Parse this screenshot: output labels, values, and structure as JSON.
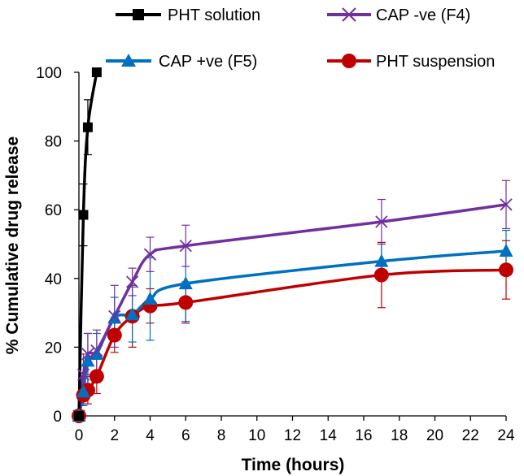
{
  "chart_data": {
    "type": "line",
    "title": "",
    "xlabel": "Time (hours)",
    "ylabel": "% Cumulative drug release",
    "xlim": [
      0,
      24
    ],
    "ylim": [
      0,
      100
    ],
    "xticks": [
      "0",
      "2",
      "4",
      "6",
      "8",
      "10",
      "12",
      "14",
      "16",
      "18",
      "20",
      "22",
      "24"
    ],
    "yticks": [
      "0",
      "20",
      "40",
      "60",
      "80",
      "100"
    ],
    "grid": false,
    "legend_position": "top",
    "series": [
      {
        "name": "PHT solution",
        "color": "#000000",
        "marker": "square",
        "x": [
          0,
          0.25,
          0.5,
          1
        ],
        "y": [
          0,
          58.5,
          84,
          100
        ],
        "err": [
          0,
          9,
          8,
          0
        ]
      },
      {
        "name": "CAP -ve (F4)",
        "color": "#7030a0",
        "marker": "x",
        "x": [
          0,
          0.25,
          0.5,
          1,
          2,
          3,
          4,
          6,
          17,
          24
        ],
        "y": [
          0,
          12,
          18,
          19,
          29,
          39,
          47,
          49.5,
          56.5,
          61.5
        ],
        "err": [
          0,
          6,
          6,
          6,
          9,
          4,
          5,
          6,
          6.5,
          7
        ]
      },
      {
        "name": "CAP +ve (F5)",
        "color": "#0070c0",
        "marker": "triangle",
        "x": [
          0,
          0.25,
          0.5,
          1,
          2,
          3,
          4,
          6,
          17,
          24
        ],
        "y": [
          0,
          7,
          16,
          18,
          28.5,
          29.5,
          34,
          38.5,
          45,
          48
        ],
        "err": [
          0,
          4,
          8,
          6,
          6,
          8,
          12,
          11,
          5,
          6
        ]
      },
      {
        "name": "PHT suspension",
        "color": "#c00000",
        "marker": "circle",
        "x": [
          0,
          0.25,
          0.5,
          1,
          2,
          3,
          4,
          6,
          17,
          24
        ],
        "y": [
          0,
          6,
          7.5,
          11.5,
          23.5,
          29,
          32,
          33,
          41,
          42.5
        ],
        "err": [
          0,
          3,
          4,
          5,
          5,
          9,
          5,
          6,
          9.5,
          8.5
        ]
      }
    ]
  }
}
